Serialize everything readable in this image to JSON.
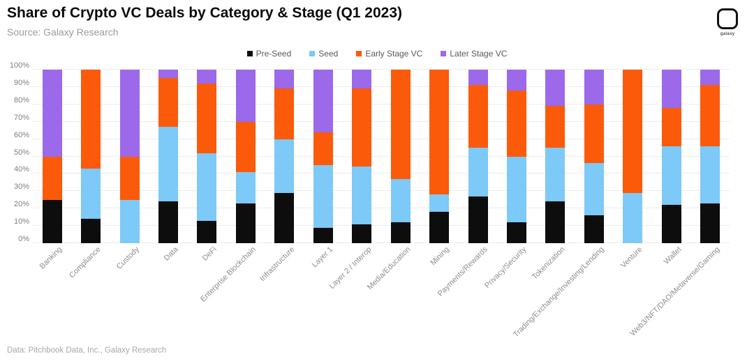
{
  "header": {
    "title": "Share of Crypto VC Deals by Category & Stage (Q1 2023)",
    "subtitle": "Source: Galaxy Research",
    "logo_text": "galaxy"
  },
  "footer": {
    "source_note": "Data: Pitchbook Data, Inc., Galaxy Research"
  },
  "colors": {
    "pre_seed": "#0d0d0d",
    "seed": "#7dc9f8",
    "early_stage_vc": "#fb5a0a",
    "later_stage_vc": "#9b69e9",
    "grid": "#ececec",
    "axis_text": "#7f7f7f",
    "label_text": "#8e8e8e"
  },
  "chart_data": {
    "type": "bar",
    "stacked": true,
    "title": "Share of Crypto VC Deals by Category & Stage (Q1 2023)",
    "xlabel": "",
    "ylabel": "",
    "ylim": [
      0,
      100
    ],
    "grid": true,
    "legend_position": "top-center",
    "yticks": [
      "0%",
      "10%",
      "20%",
      "30%",
      "40%",
      "50%",
      "60%",
      "70%",
      "80%",
      "90%",
      "100%"
    ],
    "categories": [
      "Banking",
      "Compliance",
      "Custody",
      "Data",
      "DeFi",
      "Enterprise Blockchain",
      "Infrastructure",
      "Layer 1",
      "Layer 2 / Interop",
      "Media/Education",
      "Mining",
      "Payments/Rewards",
      "Privacy/Security",
      "Tokenization",
      "Trading/Exchange/Investing/Lending",
      "Venture",
      "Wallet",
      "Web3/NFT/DAO/Metaverse/Gaming"
    ],
    "series": [
      {
        "name": "Pre-Seed",
        "color": "#0d0d0d",
        "values": [
          25,
          14,
          0,
          24,
          13,
          23,
          29,
          9,
          11,
          12,
          18,
          27,
          12,
          24,
          16,
          0,
          22,
          23
        ]
      },
      {
        "name": "Seed",
        "color": "#7dc9f8",
        "values": [
          0,
          29,
          25,
          43,
          39,
          18,
          31,
          36,
          33,
          25,
          10,
          28,
          38,
          31,
          30,
          29,
          34,
          33
        ]
      },
      {
        "name": "Early Stage VC",
        "color": "#fb5a0a",
        "values": [
          25,
          57,
          25,
          28,
          40,
          29,
          29,
          19,
          45,
          63,
          72,
          36,
          38,
          24,
          34,
          71,
          22,
          35
        ]
      },
      {
        "name": "Later Stage VC",
        "color": "#9b69e9",
        "values": [
          50,
          0,
          50,
          5,
          8,
          30,
          11,
          36,
          11,
          0,
          0,
          9,
          12,
          21,
          20,
          0,
          22,
          9
        ]
      }
    ]
  }
}
